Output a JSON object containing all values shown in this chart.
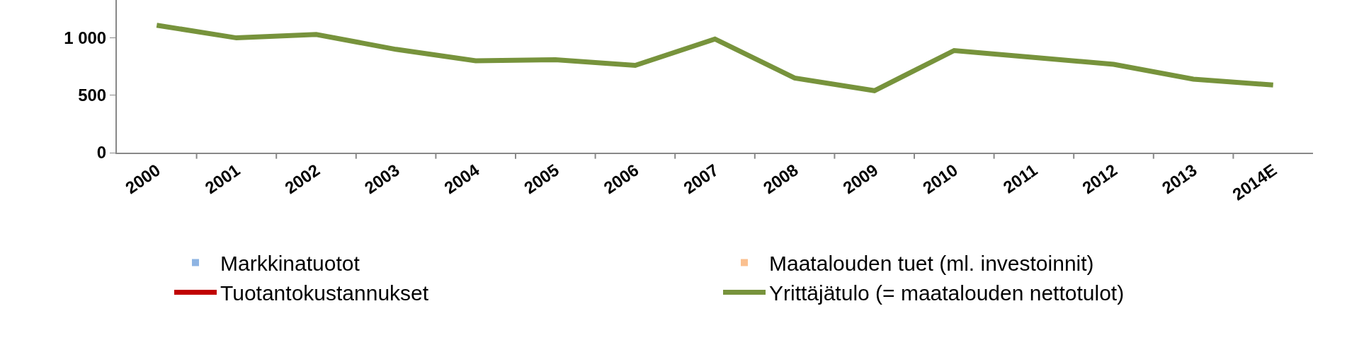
{
  "chart_data": {
    "type": "bar",
    "categories": [
      "2000",
      "2001",
      "2002",
      "2003",
      "2004",
      "2005",
      "2006",
      "2007",
      "2008",
      "2009",
      "2010",
      "2011",
      "2012",
      "2013",
      "2014E"
    ],
    "series": [
      {
        "name": "Markkinatuotot",
        "color": "#8eb4e3",
        "values": [
          null,
          null,
          null,
          null,
          null,
          null,
          null,
          null,
          null,
          null,
          null,
          null,
          null,
          null,
          null
        ]
      },
      {
        "name": "Maatalouden tuet (ml. investoinnit)",
        "color": "#fac090",
        "values": [
          null,
          null,
          null,
          null,
          null,
          null,
          null,
          null,
          null,
          null,
          null,
          null,
          null,
          null,
          null
        ]
      },
      {
        "name": "Tuotantokustannukset",
        "type": "line",
        "color": "#c00000",
        "values": [
          null,
          null,
          null,
          null,
          null,
          null,
          null,
          null,
          null,
          null,
          null,
          null,
          null,
          null,
          null
        ]
      },
      {
        "name": "Yrittäjätulo (= maatalouden nettotulot)",
        "type": "line",
        "color": "#77933c",
        "values": [
          1110,
          1000,
          1030,
          900,
          800,
          810,
          760,
          990,
          650,
          540,
          890,
          830,
          770,
          640,
          590
        ]
      }
    ],
    "ylim": [
      0,
      1330
    ],
    "yticks": [
      0,
      500,
      {
        "value": 1000,
        "label": "1 000"
      }
    ],
    "grid": false,
    "legend": "bottom",
    "marker": "none",
    "line_style": "solid"
  }
}
